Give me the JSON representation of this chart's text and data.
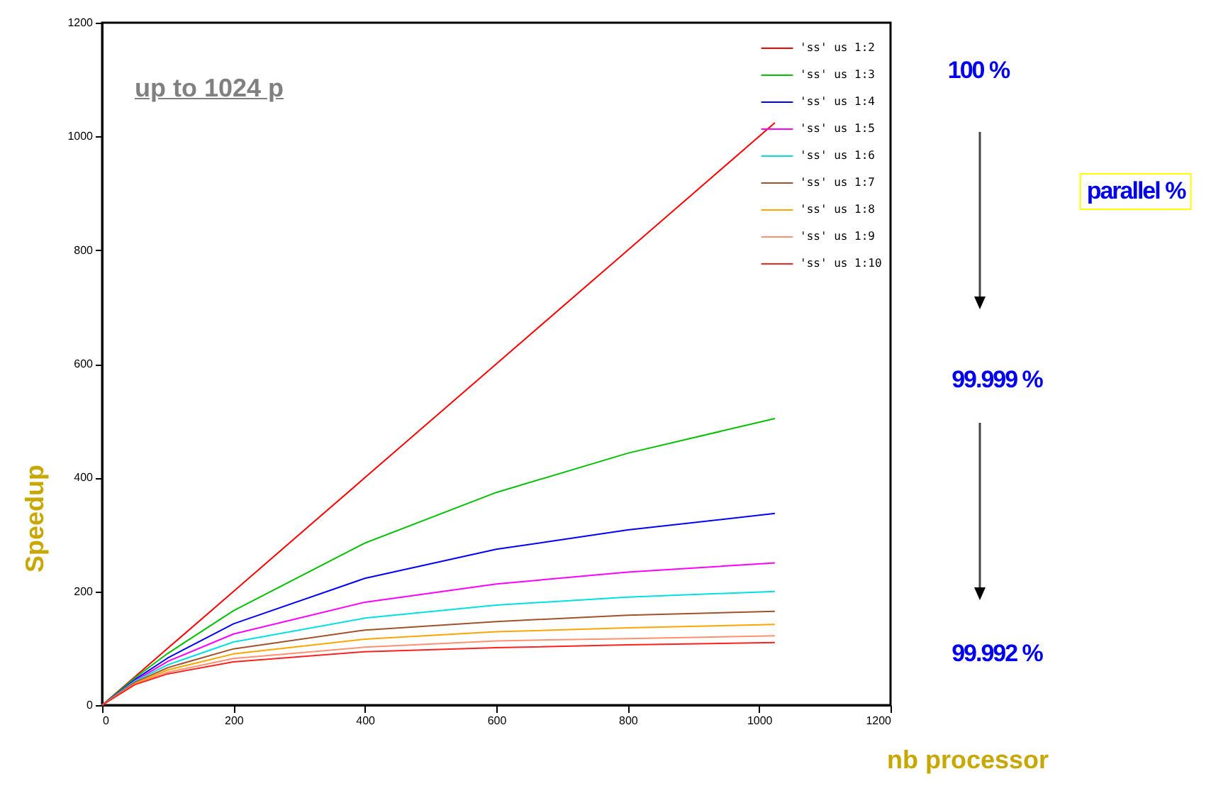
{
  "chart_data": {
    "type": "line",
    "title": "up to 1024 p",
    "xlabel": "nb processor",
    "ylabel": "Speedup",
    "annotations": [
      "100 %",
      "parallel %",
      "99.999 %",
      "99.992 %"
    ],
    "x": [
      0,
      50,
      100,
      200,
      400,
      600,
      800,
      1024
    ],
    "series": [
      {
        "name": "'ss' us 1:2",
        "color": "#ff0000",
        "values": [
          0,
          50,
          100,
          200,
          400,
          600,
          800,
          1024
        ]
      },
      {
        "name": "'ss' us 1:3",
        "color": "#00c000",
        "values": [
          0,
          48,
          91,
          166,
          285,
          374,
          443,
          504
        ]
      },
      {
        "name": "'ss' us 1:4",
        "color": "#0000ff",
        "values": [
          0,
          45,
          83,
          143,
          223,
          274,
          308,
          337
        ]
      },
      {
        "name": "'ss' us 1:5",
        "color": "#ff00ff",
        "values": [
          0,
          43,
          77,
          125,
          181,
          213,
          234,
          250
        ]
      },
      {
        "name": "'ss' us 1:6",
        "color": "#00e0e0",
        "values": [
          0,
          42,
          71,
          111,
          153,
          176,
          190,
          200
        ]
      },
      {
        "name": "'ss' us 1:7",
        "color": "#a0522d",
        "values": [
          0,
          40,
          66,
          99,
          132,
          147,
          158,
          165
        ]
      },
      {
        "name": "'ss' us 1:8",
        "color": "#ffa500",
        "values": [
          0,
          38,
          62,
          90,
          116,
          129,
          136,
          142
        ]
      },
      {
        "name": "'ss' us 1:9",
        "color": "#ff9070",
        "values": [
          0,
          37,
          58,
          82,
          102,
          113,
          117,
          122
        ]
      },
      {
        "name": "'ss' us 1:10",
        "color": "#ff2020",
        "values": [
          0,
          36,
          55,
          76,
          94,
          101,
          106,
          110
        ]
      }
    ],
    "xlim": [
      0,
      1200
    ],
    "ylim": [
      0,
      1200
    ],
    "xticks": [
      0,
      200,
      400,
      600,
      800,
      1000,
      1200
    ],
    "yticks": [
      0,
      200,
      400,
      600,
      800,
      1000,
      1200
    ],
    "grid": false,
    "legend": "top right",
    "marker": "none",
    "line_style": "solid"
  }
}
